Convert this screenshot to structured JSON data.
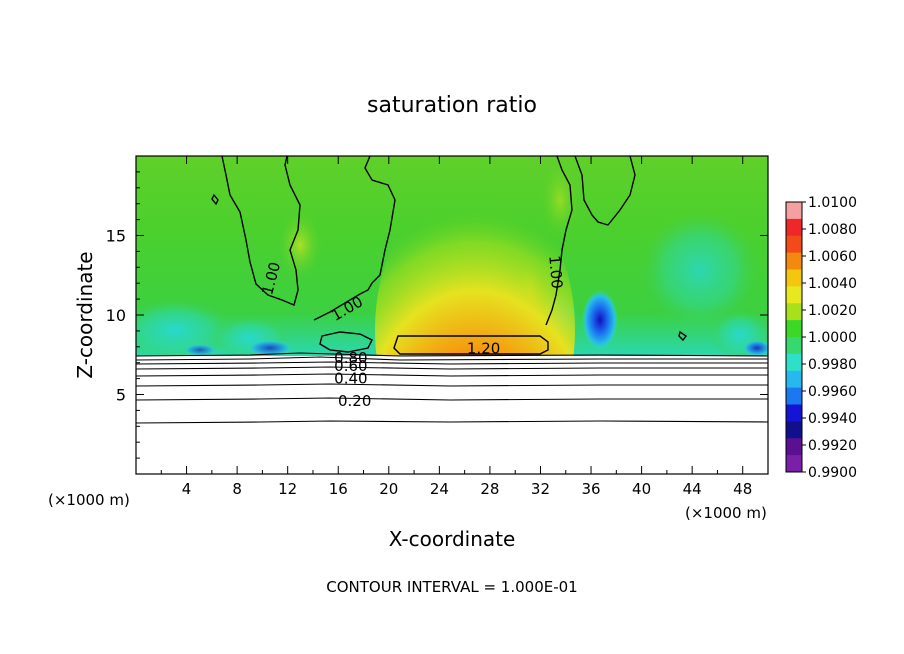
{
  "chart_data": {
    "type": "heatmap",
    "title": "saturation ratio",
    "xlabel": "X-coordinate",
    "ylabel": "Z-coordinate",
    "x_units_left": "(×1000 m)",
    "x_units_right": "(×1000 m)",
    "xlim": [
      0,
      50
    ],
    "ylim": [
      0,
      20
    ],
    "x_ticks": [
      4,
      8,
      12,
      16,
      20,
      24,
      28,
      32,
      36,
      40,
      44,
      48
    ],
    "y_ticks": [
      5,
      10,
      15
    ],
    "footer": "CONTOUR INTERVAL = 1.000E-01",
    "colorbar": {
      "labels": [
        "1.0100",
        "1.0080",
        "1.0060",
        "1.0040",
        "1.0020",
        "1.0000",
        "0.9980",
        "0.9960",
        "0.9940",
        "0.9920",
        "0.9900"
      ],
      "colors": [
        "#f4a0a0",
        "#ee2828",
        "#f24a18",
        "#f28a10",
        "#f4c610",
        "#e8e820",
        "#a8e01c",
        "#3cd828",
        "#38d870",
        "#2ee0c8",
        "#28b8f0",
        "#1c78f0",
        "#1414d4",
        "#10108c",
        "#5a1090",
        "#7a20a8"
      ]
    },
    "contour_labels": [
      {
        "text": "1.00",
        "x": 10.7,
        "z": 12.3,
        "angle": -75
      },
      {
        "text": "1.00",
        "x": 16.7,
        "z": 10.4,
        "angle": -30
      },
      {
        "text": "1.00",
        "x": 33.2,
        "z": 12.7,
        "angle": 85
      },
      {
        "text": "1.20",
        "x": 27.5,
        "z": 7.9,
        "angle": 0
      },
      {
        "text": "0.80",
        "x": 17.0,
        "z": 7.3,
        "angle": 0
      },
      {
        "text": "0.60",
        "x": 17.0,
        "z": 6.8,
        "angle": 0
      },
      {
        "text": "0.40",
        "x": 17.0,
        "z": 6.0,
        "angle": 0
      },
      {
        "text": "0.20",
        "x": 17.3,
        "z": 4.6,
        "angle": 0
      }
    ]
  }
}
